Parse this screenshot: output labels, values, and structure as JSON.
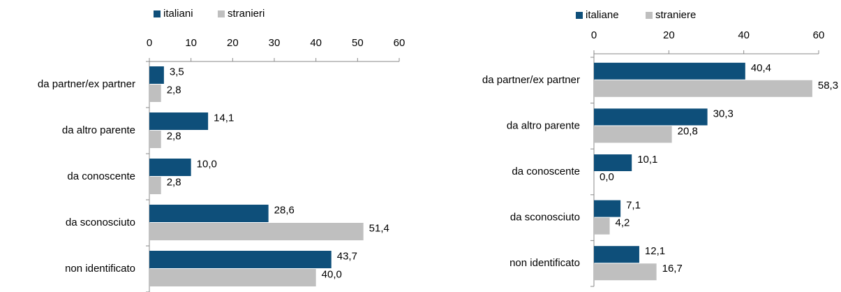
{
  "chart_data": [
    {
      "type": "bar",
      "categories": [
        "da partner/ex partner",
        "da altro parente",
        "da conoscente",
        "da sconosciuto",
        "non identificato"
      ],
      "series": [
        {
          "name": "italiani",
          "color": "#0e4f7a",
          "values": [
            3.5,
            14.1,
            10.0,
            28.6,
            43.7
          ],
          "value_labels": [
            "3,5",
            "14,1",
            "10,0",
            "28,6",
            "43,7"
          ]
        },
        {
          "name": "stranieri",
          "color": "#bfbfbf",
          "values": [
            2.8,
            2.8,
            2.8,
            51.4,
            40.0
          ],
          "value_labels": [
            "2,8",
            "2,8",
            "2,8",
            "51,4",
            "40,0"
          ]
        }
      ],
      "xlim": [
        0,
        60
      ],
      "xticks": [
        0,
        10,
        20,
        30,
        40,
        50,
        60
      ],
      "legend": "top"
    },
    {
      "type": "bar",
      "categories": [
        "da partner/ex partner",
        "da altro parente",
        "da conoscente",
        "da sconosciuto",
        "non identificato"
      ],
      "series": [
        {
          "name": "italiane",
          "color": "#0e4f7a",
          "values": [
            40.4,
            30.3,
            10.1,
            7.1,
            12.1
          ],
          "value_labels": [
            "40,4",
            "30,3",
            "10,1",
            "7,1",
            "12,1"
          ]
        },
        {
          "name": "straniere",
          "color": "#bfbfbf",
          "values": [
            58.3,
            20.8,
            0.0,
            4.2,
            16.7
          ],
          "value_labels": [
            "58,3",
            "20,8",
            "0,0",
            "4,2",
            "16,7"
          ]
        }
      ],
      "xlim": [
        0,
        60
      ],
      "xticks": [
        0,
        20,
        40,
        60
      ],
      "legend": "top"
    }
  ]
}
